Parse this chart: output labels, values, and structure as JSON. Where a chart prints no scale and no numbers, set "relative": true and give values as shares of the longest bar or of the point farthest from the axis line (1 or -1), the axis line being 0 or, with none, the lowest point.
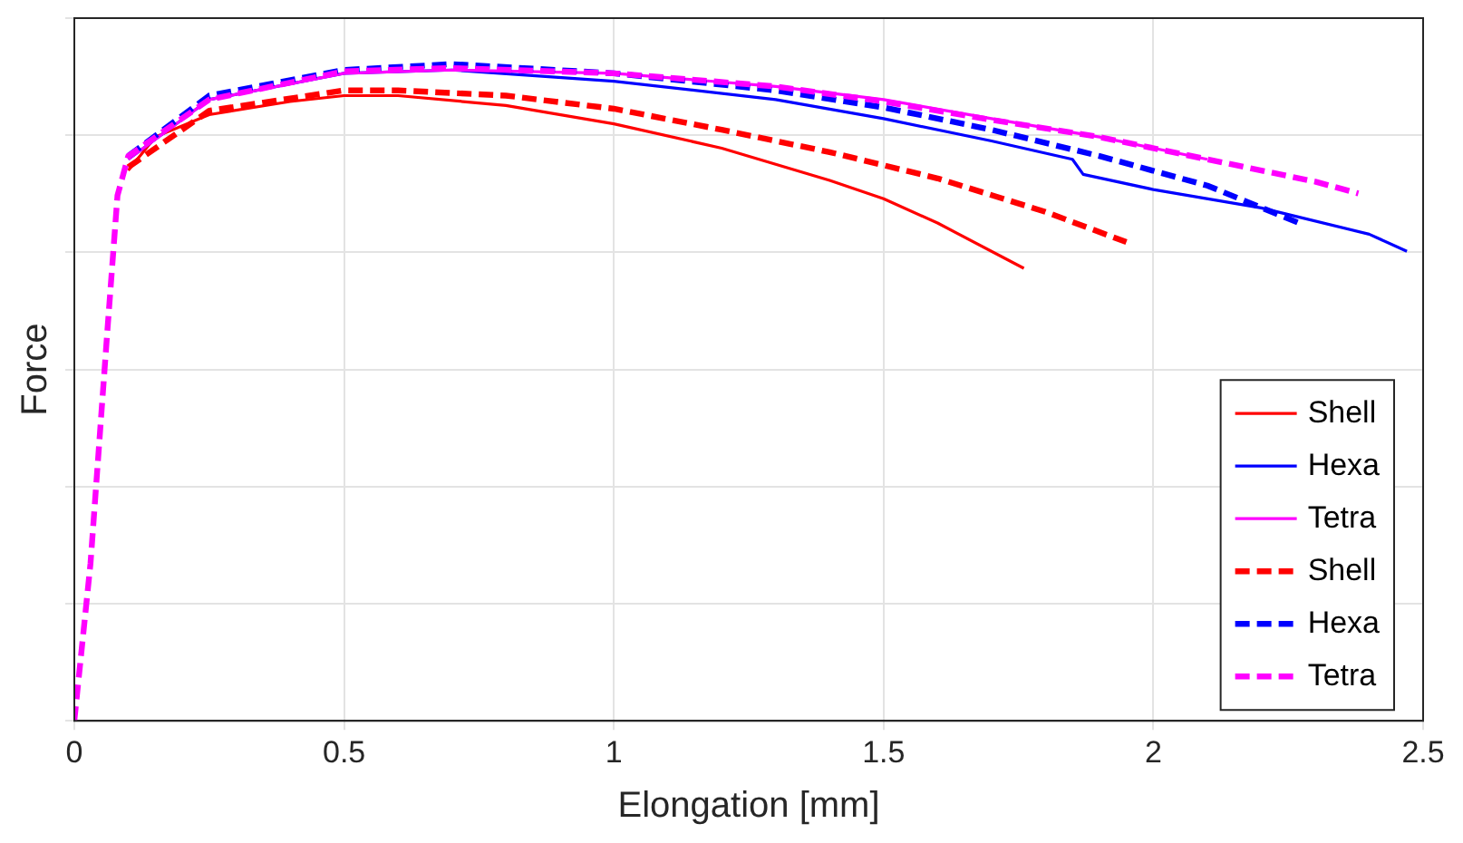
{
  "chart_data": {
    "type": "line",
    "xlabel": "Elongation [mm]",
    "ylabel": "Force",
    "relative": true,
    "xlim": [
      0,
      2.5
    ],
    "xticks": [
      0,
      0.5,
      1,
      1.5,
      2,
      2.5
    ],
    "grid": true,
    "legend": "bottom right",
    "marker": "none",
    "series": [
      {
        "name": "Shell",
        "color": "#ff0000",
        "line_style": "solid",
        "x": [
          0.1,
          0.15,
          0.25,
          0.4,
          0.5,
          0.6,
          0.8,
          1.0,
          1.2,
          1.4,
          1.5,
          1.6,
          1.76
        ],
        "values": [
          0.838,
          0.889,
          0.923,
          0.943,
          0.952,
          0.952,
          0.937,
          0.909,
          0.872,
          0.823,
          0.795,
          0.758,
          0.689
        ]
      },
      {
        "name": "Hexa",
        "color": "#0000ff",
        "line_style": "solid",
        "x": [
          0.1,
          0.25,
          0.5,
          0.7,
          1.0,
          1.3,
          1.5,
          1.7,
          1.85,
          1.87,
          2.0,
          2.2,
          2.4,
          2.47
        ],
        "values": [
          0.855,
          0.946,
          0.986,
          0.991,
          0.974,
          0.946,
          0.917,
          0.883,
          0.855,
          0.832,
          0.809,
          0.781,
          0.741,
          0.715
        ]
      },
      {
        "name": "Tetra",
        "color": "#ff00ff",
        "line_style": "solid",
        "x": [
          0.1,
          0.25,
          0.5,
          0.7,
          1.0,
          1.3,
          1.5,
          1.7,
          1.9,
          2.1
        ],
        "values": [
          0.855,
          0.946,
          0.986,
          0.991,
          0.986,
          0.966,
          0.946,
          0.917,
          0.889,
          0.855
        ]
      },
      {
        "name": "Shell",
        "color": "#ff0000",
        "line_style": "dashed",
        "x": [
          0.1,
          0.25,
          0.5,
          0.6,
          0.8,
          1.0,
          1.2,
          1.4,
          1.6,
          1.8,
          1.95
        ],
        "values": [
          0.843,
          0.929,
          0.96,
          0.96,
          0.952,
          0.932,
          0.9,
          0.866,
          0.826,
          0.775,
          0.729
        ]
      },
      {
        "name": "Hexa",
        "color": "#0000ff",
        "line_style": "dashed",
        "x": [
          0.1,
          0.25,
          0.5,
          0.7,
          1.0,
          1.3,
          1.5,
          1.7,
          1.9,
          2.1,
          2.27
        ],
        "values": [
          0.86,
          0.952,
          0.991,
          1.0,
          0.986,
          0.96,
          0.934,
          0.9,
          0.86,
          0.815,
          0.758
        ]
      },
      {
        "name": "Tetra",
        "color": "#ff00ff",
        "line_style": "dashed",
        "x": [
          0,
          0.03,
          0.06,
          0.08,
          0.1,
          0.25,
          0.5,
          0.7,
          1.0,
          1.3,
          1.5,
          1.7,
          1.9,
          2.1,
          2.3,
          2.38
        ],
        "values": [
          0,
          0.24,
          0.58,
          0.8,
          0.86,
          0.946,
          0.989,
          0.994,
          0.986,
          0.966,
          0.943,
          0.915,
          0.889,
          0.855,
          0.821,
          0.803
        ]
      }
    ]
  }
}
